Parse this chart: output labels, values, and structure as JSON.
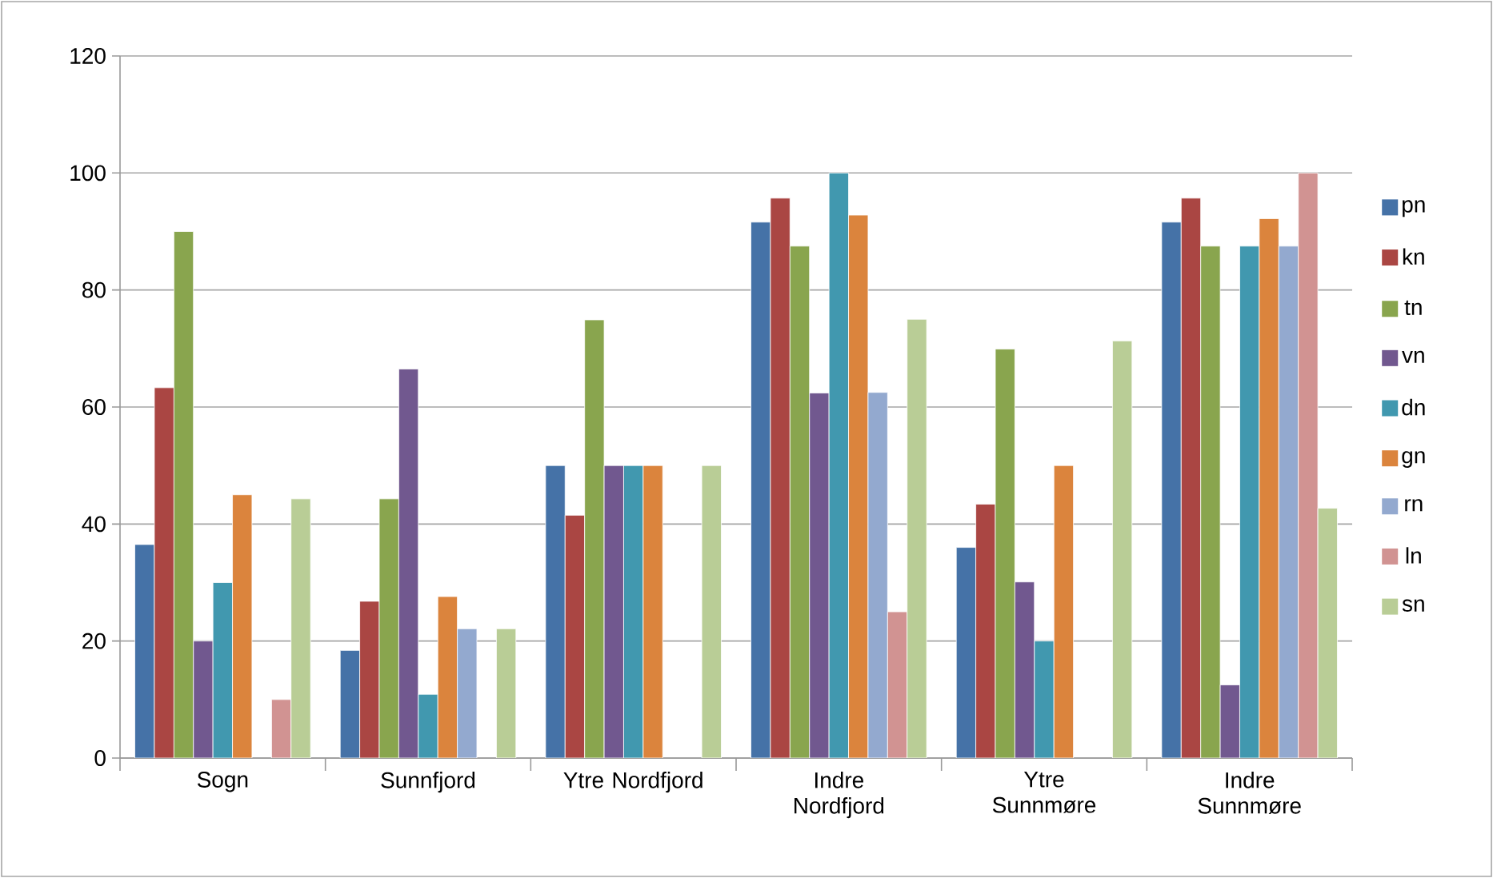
{
  "chart_data": {
    "type": "bar",
    "categories": [
      "Sogn",
      "Sunnfjord",
      "Ytre Nordfjord",
      "Indre Nordfjord",
      "Ytre Sunnmøre",
      "Indre Sunnmøre"
    ],
    "series": [
      {
        "name": "pn",
        "color": "#4572a7",
        "values": [
          36.5,
          18.4,
          50,
          91.6,
          36,
          91.6
        ]
      },
      {
        "name": "kn",
        "color": "#aa4643",
        "values": [
          63.3,
          26.8,
          41.5,
          95.7,
          43.4,
          95.7
        ]
      },
      {
        "name": "tn",
        "color": "#89a54e",
        "values": [
          90,
          44.3,
          74.9,
          87.5,
          69.9,
          87.5
        ]
      },
      {
        "name": "vn",
        "color": "#71588f",
        "values": [
          20,
          66.5,
          50,
          62.4,
          30.1,
          12.5
        ]
      },
      {
        "name": "dn",
        "color": "#4198af",
        "values": [
          30,
          10.9,
          50,
          100,
          20,
          87.5
        ]
      },
      {
        "name": "gn",
        "color": "#db843d",
        "values": [
          45,
          27.6,
          50,
          92.8,
          50,
          92.2
        ]
      },
      {
        "name": "rn",
        "color": "#93a9cf",
        "values": [
          null,
          22.1,
          null,
          62.5,
          null,
          87.5
        ]
      },
      {
        "name": "ln",
        "color": "#d19392",
        "values": [
          10,
          null,
          null,
          25,
          null,
          100
        ]
      },
      {
        "name": "sn",
        "color": "#b9cd96",
        "values": [
          44.3,
          22.1,
          50,
          75,
          71.3,
          42.7
        ]
      }
    ],
    "ylim": [
      0,
      120
    ],
    "yticks": [
      0,
      20,
      40,
      60,
      80,
      100,
      120
    ],
    "grid": "y",
    "legend": "right"
  }
}
